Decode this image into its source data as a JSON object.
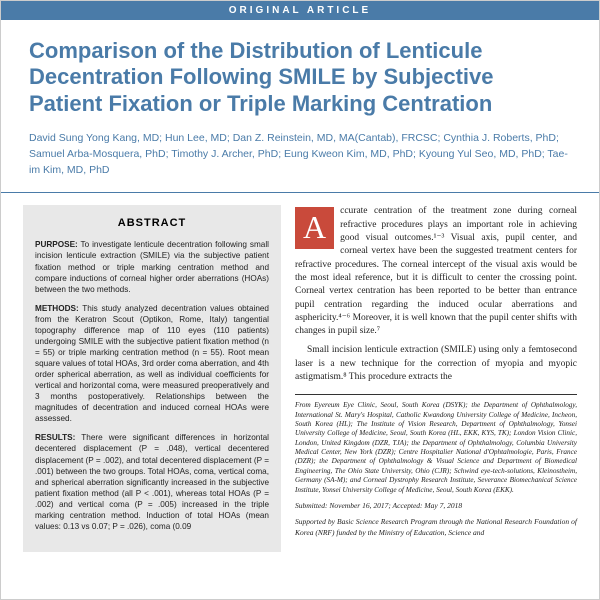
{
  "header_band": "ORIGINAL ARTICLE",
  "title": "Comparison of the Distribution of Lenticule Decentration Following SMILE by Subjective Patient Fixation or Triple Marking Centration",
  "authors": "David Sung Yong Kang, MD; Hun Lee, MD; Dan Z. Reinstein, MD, MA(Cantab), FRCSC; Cynthia J. Roberts, PhD; Samuel Arba-Mosquera, PhD; Timothy J. Archer, PhD; Eung Kweon Kim, MD, PhD; Kyoung Yul Seo, MD, PhD; Tae-im Kim, MD, PhD",
  "abstract": {
    "heading": "ABSTRACT",
    "purpose_label": "PURPOSE:",
    "purpose": "To investigate lenticule decentration following small incision lenticule extraction (SMILE) via the subjective patient fixation method or triple marking centration method and compare inductions of corneal higher order aberrations (HOAs) between the two methods.",
    "methods_label": "METHODS:",
    "methods": "This study analyzed decentration values obtained from the Keratron Scout (Optikon, Rome, Italy) tangential topography difference map of 110 eyes (110 patients) undergoing SMILE with the subjective patient fixation method (n = 55) or triple marking centration method (n = 55). Root mean square values of total HOAs, 3rd order coma aberration, and 4th order spherical aberration, as well as individual coefficients for vertical and horizontal coma, were measured preoperatively and 3 months postoperatively. Relationships between the magnitudes of decentration and induced corneal HOAs were assessed.",
    "results_label": "RESULTS:",
    "results": "There were significant differences in horizontal decentered displacement (P = .048), vertical decentered displacement (P = .002), and total decentered displacement (P = .001) between the two groups. Total HOAs, coma, vertical coma, and spherical aberration significantly increased in the subjective patient fixation method (all P < .001), whereas total HOAs (P = .002) and vertical coma (P = .005) increased in the triple marking centration method. Induction of total HOAs (mean values: 0.13 vs 0.07; P = .026), coma (0.09"
  },
  "body": {
    "dropcap": "A",
    "para1": "ccurate centration of the treatment zone during corneal refractive procedures plays an important role in achieving good visual outcomes.¹⁻³ Visual axis, pupil center, and corneal vertex have been the suggested treatment centers for refractive procedures. The corneal intercept of the visual axis would be the most ideal reference, but it is difficult to center the crossing point. Corneal vertex centration has been reported to be better than entrance pupil centration regarding the induced ocular aberrations and asphericity.⁴⁻⁶ Moreover, it is well known that the pupil center shifts with changes in pupil size.⁷",
    "para2": "Small incision lenticule extraction (SMILE) using only a femtosecond laser is a new technique for the correction of myopia and myopic astigmatism.⁸ This procedure extracts the",
    "affiliations": "From Eyereum Eye Clinic, Seoul, South Korea (DSYK); the Department of Ophthalmology, International St. Mary's Hospital, Catholic Kwandong University College of Medicine, Incheon, South Korea (HL); The Institute of Vision Research, Department of Ophthalmology, Yonsei University College of Medicine, Seoul, South Korea (HL, EKK, KYS, TK); London Vision Clinic, London, United Kingdom (DZR, TJA); the Department of Ophthalmology, Columbia University Medical Center, New York (DZR); Centre Hospitalier National d'Ophtalmologie, Paris, France (DZR); the Department of Ophthalmology & Visual Science and Department of Biomedical Engineering, The Ohio State University, Ohio (CJR); Schwind eye-tech-solutions, Kleinostheim, Germany (SA-M); and Corneal Dystrophy Research Institute, Severance Biomechanical Science Institute, Yonsei University College of Medicine, Seoul, South Korea (EKK).",
    "submitted": "Submitted: November 16, 2017; Accepted: May 7, 2018",
    "funding": "Supported by Basic Science Research Program through the National Research Foundation of Korea (NRF) funded by the Ministry of Education, Science and"
  },
  "colors": {
    "brand_blue": "#4a7ba8",
    "dropcap_bg": "#c94a3b",
    "abstract_bg": "#e8e8e8"
  }
}
